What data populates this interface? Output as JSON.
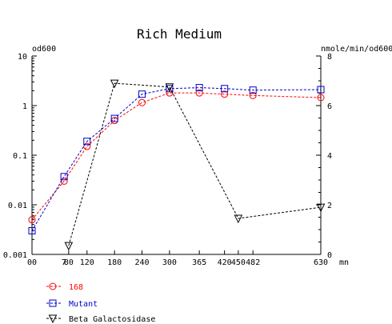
{
  "chart_data": {
    "type": "line",
    "title": "Rich Medium",
    "ylabel_left": "od600",
    "ylabel_right": "nmole/min/od600",
    "xunit": "mn",
    "x_ticks": [
      0,
      80,
      120,
      180,
      240,
      300,
      365,
      420,
      450,
      482,
      630
    ],
    "x_tick_labels": [
      "00",
      "80",
      "120",
      "180",
      "240",
      "300",
      "365",
      "420",
      "450",
      "482",
      "630"
    ],
    "extra_x_label": "7",
    "left_scale": "log",
    "left_ylim": [
      0.001,
      10
    ],
    "left_ticks": [
      "0.001",
      "0.01",
      "0.1",
      "1",
      "10"
    ],
    "right_ylim": [
      0,
      8
    ],
    "right_ticks": [
      "0",
      "2",
      "4",
      "6",
      "8"
    ],
    "series": [
      {
        "name": "168",
        "axis": "left",
        "marker": "circle",
        "color": "#ff0000",
        "x": [
          0,
          70,
          120,
          180,
          240,
          300,
          365,
          420,
          482,
          630
        ],
        "y": [
          0.005,
          0.03,
          0.15,
          0.5,
          1.15,
          1.8,
          1.8,
          1.7,
          1.6,
          1.45
        ]
      },
      {
        "name": "Mutant",
        "axis": "left",
        "marker": "square",
        "color": "#0000cc",
        "x": [
          0,
          70,
          120,
          180,
          240,
          300,
          365,
          420,
          482,
          630
        ],
        "y": [
          0.003,
          0.037,
          0.19,
          0.55,
          1.7,
          2.2,
          2.3,
          2.2,
          2.05,
          2.1
        ]
      },
      {
        "name": "Beta Galactosidase",
        "axis": "right",
        "marker": "triangle-down",
        "color": "#000000",
        "x": [
          80,
          180,
          300,
          450,
          630
        ],
        "y": [
          0.35,
          6.9,
          6.75,
          1.45,
          1.9
        ]
      }
    ]
  }
}
